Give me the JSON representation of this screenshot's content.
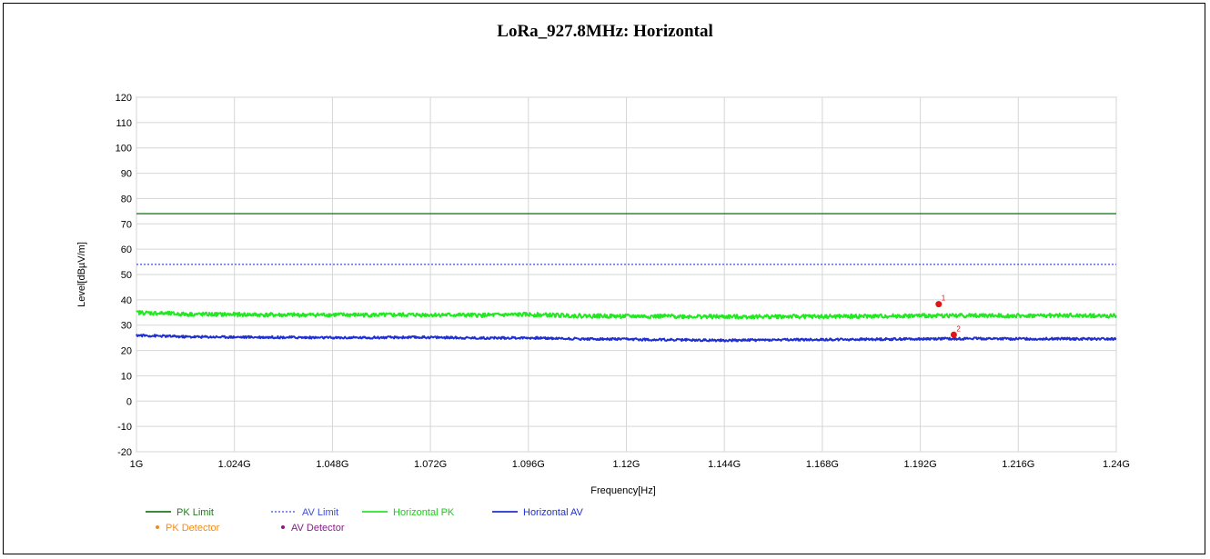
{
  "chart_data": {
    "type": "line",
    "title": "LoRa_927.8MHz: Horizontal",
    "xlabel": "Frequency[Hz]",
    "ylabel": "Level[dBµV/m]",
    "x_ticks": [
      {
        "value": 1.0,
        "label": "1G"
      },
      {
        "value": 1.024,
        "label": "1.024G"
      },
      {
        "value": 1.048,
        "label": "1.048G"
      },
      {
        "value": 1.072,
        "label": "1.072G"
      },
      {
        "value": 1.096,
        "label": "1.096G"
      },
      {
        "value": 1.12,
        "label": "1.12G"
      },
      {
        "value": 1.144,
        "label": "1.144G"
      },
      {
        "value": 1.168,
        "label": "1.168G"
      },
      {
        "value": 1.192,
        "label": "1.192G"
      },
      {
        "value": 1.216,
        "label": "1.216G"
      },
      {
        "value": 1.24,
        "label": "1.24G"
      }
    ],
    "y_ticks": [
      "120",
      "110",
      "100",
      "90",
      "80",
      "70",
      "60",
      "50",
      "40",
      "30",
      "20",
      "10",
      "0",
      "-10",
      "-20"
    ],
    "xlim": [
      1.0,
      1.24
    ],
    "ylim": [
      -20,
      120
    ],
    "grid": true,
    "legend_position": "bottom-left",
    "series": [
      {
        "name": "PK Limit",
        "color": "#1e7a1e",
        "style": "solid",
        "x": [
          1.0,
          1.24
        ],
        "y": [
          74,
          74
        ]
      },
      {
        "name": "AV Limit",
        "color": "#3c4fd6",
        "style": "dotted",
        "x": [
          1.0,
          1.24
        ],
        "y": [
          54,
          54
        ]
      },
      {
        "name": "Horizontal PK",
        "color": "#22e822",
        "style": "solid",
        "x": [
          1.0,
          1.012,
          1.024,
          1.036,
          1.048,
          1.06,
          1.072,
          1.084,
          1.096,
          1.108,
          1.12,
          1.132,
          1.144,
          1.156,
          1.168,
          1.18,
          1.192,
          1.204,
          1.216,
          1.228,
          1.24
        ],
        "y": [
          35.0,
          34.3,
          34.2,
          34.0,
          34.1,
          34.0,
          34.1,
          33.9,
          34.2,
          33.7,
          33.5,
          33.5,
          33.3,
          33.4,
          33.4,
          33.5,
          33.7,
          33.8,
          33.7,
          33.8,
          33.6
        ]
      },
      {
        "name": "Horizontal AV",
        "color": "#1f2fd0",
        "style": "solid",
        "x": [
          1.0,
          1.012,
          1.024,
          1.036,
          1.048,
          1.06,
          1.072,
          1.084,
          1.096,
          1.108,
          1.12,
          1.132,
          1.144,
          1.156,
          1.168,
          1.18,
          1.192,
          1.204,
          1.216,
          1.228,
          1.24
        ],
        "y": [
          26.0,
          25.4,
          25.3,
          25.2,
          25.0,
          25.1,
          25.2,
          24.9,
          25.0,
          24.6,
          24.4,
          24.2,
          24.0,
          24.2,
          24.3,
          24.4,
          24.6,
          24.7,
          24.6,
          24.6,
          24.5
        ]
      }
    ],
    "detector_legend": [
      {
        "name": "PK Detector",
        "color": "#f28c1a"
      },
      {
        "name": "AV Detector",
        "color": "#8b1a8b"
      }
    ],
    "markers": [
      {
        "label": "1",
        "x": 1.1965,
        "y": 38.3,
        "color": "#e01515"
      },
      {
        "label": "2",
        "x": 1.2002,
        "y": 26.2,
        "color": "#e01515"
      }
    ]
  }
}
